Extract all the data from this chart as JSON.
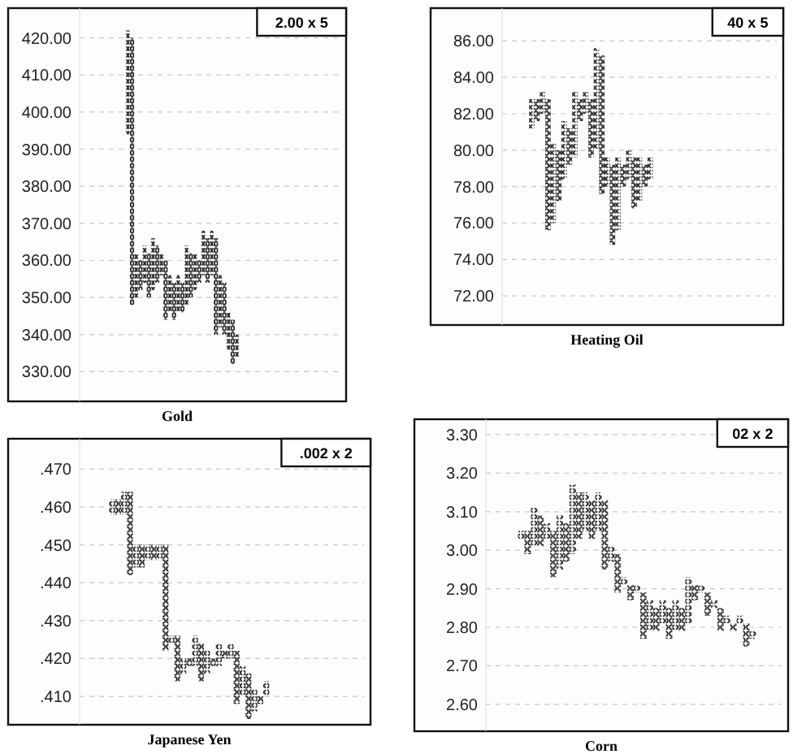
{
  "chart_data": [
    {
      "type": "bar",
      "xlabel": "Gold",
      "annotations": [
        "2.00 x 5"
      ],
      "grid": "y",
      "tick_labels": "y",
      "color": "#222222",
      "marker": "cross",
      "categories": [
        null,
        null,
        null,
        null,
        null,
        null,
        null,
        null,
        null,
        null,
        null,
        null,
        null,
        null,
        null,
        null,
        null,
        null,
        null,
        null,
        null,
        null,
        null,
        null,
        null,
        null,
        null,
        null,
        null,
        null,
        null,
        null,
        null,
        null,
        null,
        null,
        null,
        null,
        null,
        null,
        null,
        null,
        null,
        null,
        null,
        null,
        null,
        null,
        null,
        null,
        null,
        null,
        null,
        null,
        null,
        null,
        null,
        null,
        null,
        null,
        null,
        null
      ],
      "ylim": [
        322,
        428
      ],
      "yticks": [
        {
          "value": 330,
          "label": "330.00"
        },
        {
          "value": 340,
          "label": "340.00"
        },
        {
          "value": 350,
          "label": "350.00"
        },
        {
          "value": 360,
          "label": "360.00"
        },
        {
          "value": 370,
          "label": "370.00"
        },
        {
          "value": 380,
          "label": "380.00"
        },
        {
          "value": 390,
          "label": "390.00"
        },
        {
          "value": 400,
          "label": "400.00"
        },
        {
          "value": 410,
          "label": "410.00"
        },
        {
          "value": 420,
          "label": "420.00"
        }
      ],
      "values": [
        null,
        null,
        null,
        null,
        null,
        null,
        null,
        null,
        null,
        null,
        null,
        28,
        72,
        12,
        8,
        10,
        12,
        14,
        10,
        6,
        16,
        10,
        10,
        10,
        8,
        16,
        12,
        10,
        6,
        12,
        12,
        12,
        26,
        14,
        14,
        10,
        12,
        6,
        null,
        null,
        null,
        null,
        null,
        null,
        null,
        null,
        null,
        null,
        null,
        null,
        null,
        null,
        null,
        null,
        null,
        null,
        null,
        null,
        null,
        null,
        null,
        null
      ],
      "base": [
        null,
        null,
        null,
        null,
        null,
        null,
        null,
        null,
        null,
        null,
        null,
        394,
        348,
        350,
        352,
        354,
        350,
        352,
        354,
        356,
        344,
        346,
        344,
        346,
        346,
        348,
        350,
        352,
        354,
        356,
        354,
        356,
        340,
        342,
        340,
        336,
        332,
        334,
        null,
        null,
        null,
        null,
        null,
        null,
        null,
        null,
        null,
        null,
        null,
        null,
        null,
        null,
        null,
        null,
        null,
        null,
        null,
        null,
        null,
        null,
        null,
        null
      ]
    },
    {
      "type": "bar",
      "xlabel": "Heating Oil",
      "annotations": [
        "40 x 5"
      ],
      "grid": "y",
      "tick_labels": "y",
      "color": "#222222",
      "marker": "cross",
      "categories": [
        null,
        null,
        null,
        null,
        null,
        null,
        null,
        null,
        null,
        null,
        null,
        null,
        null,
        null,
        null,
        null,
        null,
        null,
        null,
        null,
        null,
        null,
        null,
        null,
        null,
        null,
        null,
        null,
        null,
        null,
        null,
        null,
        null,
        null,
        null,
        null,
        null,
        null,
        null,
        null,
        null,
        null,
        null,
        null,
        null,
        null,
        null,
        null,
        null,
        null,
        null
      ],
      "ylim": [
        70.4,
        87.8
      ],
      "yticks": [
        {
          "value": 72,
          "label": "72.00"
        },
        {
          "value": 74,
          "label": "74.00"
        },
        {
          "value": 76,
          "label": "76.00"
        },
        {
          "value": 78,
          "label": "78.00"
        },
        {
          "value": 80,
          "label": "80.00"
        },
        {
          "value": 82,
          "label": "82.00"
        },
        {
          "value": 84,
          "label": "84.00"
        },
        {
          "value": 86,
          "label": "86.00"
        }
      ],
      "values": [
        null,
        null,
        null,
        null,
        null,
        1.6,
        1.2,
        1.2,
        7.2,
        4.4,
        2.8,
        3.2,
        2.0,
        3.6,
        1.2,
        1.2,
        3.2,
        5.6,
        7.6,
        1.6,
        4.4,
        4.0,
        1.2,
        1.6,
        2.8,
        2.4,
        1.2,
        1.2,
        null,
        null,
        null,
        null,
        null,
        null,
        null,
        null,
        null,
        null,
        null,
        null,
        null,
        null,
        null,
        null,
        null,
        null,
        null,
        null,
        null,
        null,
        null
      ],
      "base": [
        null,
        null,
        null,
        null,
        null,
        81.2,
        81.6,
        82.0,
        75.6,
        76.0,
        77.2,
        78.4,
        79.2,
        79.6,
        81.6,
        82.0,
        79.6,
        80.0,
        77.6,
        78.0,
        74.8,
        75.6,
        78.0,
        78.4,
        76.8,
        77.2,
        78.0,
        78.4,
        null,
        null,
        null,
        null,
        null,
        null,
        null,
        null,
        null,
        null,
        null,
        null,
        null,
        null,
        null,
        null,
        null,
        null,
        null,
        null,
        null,
        null,
        null
      ]
    },
    {
      "type": "bar",
      "xlabel": "Japanese Yen",
      "annotations": [
        ".002 x 2"
      ],
      "grid": "y",
      "tick_labels": "y",
      "color": "#222222",
      "marker": "cross",
      "categories": [
        null,
        null,
        null,
        null,
        null,
        null,
        null,
        null,
        null,
        null,
        null,
        null,
        null,
        null,
        null,
        null,
        null,
        null,
        null,
        null,
        null,
        null,
        null,
        null,
        null,
        null,
        null,
        null,
        null,
        null,
        null,
        null,
        null,
        null,
        null,
        null,
        null,
        null,
        null,
        null,
        null,
        null,
        null,
        null,
        null,
        null,
        null,
        null
      ],
      "ylim": [
        0.4025,
        0.478
      ],
      "yticks": [
        {
          "value": 0.41,
          "label": ".410"
        },
        {
          "value": 0.42,
          "label": ".420"
        },
        {
          "value": 0.43,
          "label": ".430"
        },
        {
          "value": 0.44,
          "label": ".440"
        },
        {
          "value": 0.45,
          "label": ".450"
        },
        {
          "value": 0.46,
          "label": ".460"
        },
        {
          "value": 0.47,
          "label": ".470"
        }
      ],
      "values": [
        null,
        null,
        null,
        null,
        null,
        0.004,
        0.004,
        0.006,
        0.022,
        0.006,
        0.006,
        0.004,
        0.004,
        0.004,
        0.028,
        0.002,
        0.012,
        0.004,
        0.002,
        0.008,
        0.01,
        0.006,
        0.002,
        0.006,
        0.002,
        0.004,
        0.014,
        0.008,
        0.012,
        0.006,
        0.002,
        0.004,
        null,
        null,
        null,
        null,
        null,
        null,
        null,
        null,
        null,
        null,
        null,
        null,
        null,
        null,
        null,
        null
      ],
      "base": [
        null,
        null,
        null,
        null,
        null,
        0.458,
        0.458,
        0.458,
        0.442,
        0.444,
        0.444,
        0.446,
        0.446,
        0.446,
        0.422,
        0.424,
        0.414,
        0.416,
        0.418,
        0.418,
        0.414,
        0.416,
        0.418,
        0.418,
        0.42,
        0.42,
        0.408,
        0.41,
        0.404,
        0.406,
        0.408,
        0.41,
        null,
        null,
        null,
        null,
        null,
        null,
        null,
        null,
        null,
        null,
        null,
        null,
        null,
        null,
        null,
        null
      ]
    },
    {
      "type": "bar",
      "xlabel": "Corn",
      "annotations": [
        "02 x 2"
      ],
      "grid": "y",
      "tick_labels": "y",
      "color": "#222222",
      "marker": "cross",
      "categories": [
        null,
        null,
        null,
        null,
        null,
        null,
        null,
        null,
        null,
        null,
        null,
        null,
        null,
        null,
        null,
        null,
        null,
        null,
        null,
        null,
        null,
        null,
        null,
        null,
        null,
        null,
        null,
        null,
        null,
        null,
        null,
        null,
        null,
        null,
        null,
        null,
        null,
        null,
        null,
        null,
        null,
        null,
        null,
        null,
        null,
        null
      ],
      "ylim": [
        2.53,
        3.34
      ],
      "yticks": [
        {
          "value": 2.6,
          "label": "2.60"
        },
        {
          "value": 2.7,
          "label": "2.70"
        },
        {
          "value": 2.8,
          "label": "2.80"
        },
        {
          "value": 2.9,
          "label": "2.90"
        },
        {
          "value": 3.0,
          "label": "3.00"
        },
        {
          "value": 3.1,
          "label": "3.10"
        },
        {
          "value": 3.2,
          "label": "3.20"
        },
        {
          "value": 3.3,
          "label": "3.30"
        }
      ],
      "values": [
        null,
        null,
        null,
        null,
        null,
        0.02,
        0.06,
        0.1,
        0.08,
        0.04,
        0.12,
        0.14,
        0.1,
        0.18,
        0.12,
        0.1,
        0.1,
        0.1,
        0.18,
        0.04,
        0.1,
        0.02,
        0.04,
        0.02,
        0.12,
        0.08,
        0.06,
        0.06,
        0.08,
        0.08,
        0.06,
        0.12,
        0.04,
        0.02,
        0.06,
        0.02,
        0.06,
        0.02,
        0.02,
        0.02,
        0.06,
        0.02,
        null,
        null,
        null,
        null
      ],
      "base": [
        null,
        null,
        null,
        null,
        null,
        3.03,
        2.99,
        3.01,
        3.01,
        3.03,
        2.93,
        2.95,
        2.97,
        2.99,
        3.03,
        3.05,
        3.03,
        3.05,
        2.95,
        2.97,
        2.89,
        2.91,
        2.87,
        2.89,
        2.77,
        2.79,
        2.79,
        2.81,
        2.77,
        2.79,
        2.79,
        2.81,
        2.87,
        2.89,
        2.83,
        2.85,
        2.79,
        2.81,
        2.79,
        2.81,
        2.75,
        2.77,
        null,
        null,
        null,
        null
      ]
    }
  ]
}
